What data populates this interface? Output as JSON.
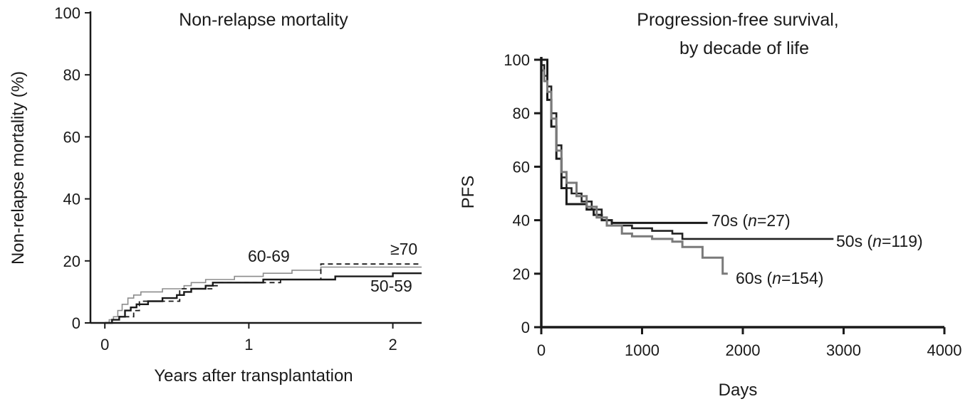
{
  "chart_data": [
    {
      "type": "line",
      "step": true,
      "title": "Non-relapse mortality",
      "xlabel": "Years after transplantation",
      "ylabel": "Non-relapse mortality (%)",
      "xlim": [
        -0.1,
        2.2
      ],
      "ylim": [
        0,
        100
      ],
      "xticks": [
        0,
        1,
        2
      ],
      "yticks": [
        0,
        20,
        40,
        60,
        80,
        100
      ],
      "grid": false,
      "series": [
        {
          "name": "60-69",
          "color": "#8c8c8c",
          "dash": "none",
          "points": [
            [
              0,
              0
            ],
            [
              0.03,
              1
            ],
            [
              0.06,
              2
            ],
            [
              0.09,
              4
            ],
            [
              0.12,
              6
            ],
            [
              0.16,
              8
            ],
            [
              0.2,
              9
            ],
            [
              0.25,
              10
            ],
            [
              0.4,
              11
            ],
            [
              0.55,
              12
            ],
            [
              0.6,
              13
            ],
            [
              0.7,
              14
            ],
            [
              0.9,
              15
            ],
            [
              1.1,
              16
            ],
            [
              1.3,
              17
            ],
            [
              1.5,
              18
            ],
            [
              1.6,
              18
            ],
            [
              2.2,
              18
            ]
          ]
        },
        {
          "name": "50-59",
          "color": "#1a1a1a",
          "dash": "none",
          "points": [
            [
              0,
              0
            ],
            [
              0.05,
              1
            ],
            [
              0.1,
              2
            ],
            [
              0.14,
              4
            ],
            [
              0.18,
              5
            ],
            [
              0.22,
              6
            ],
            [
              0.3,
              7
            ],
            [
              0.4,
              8
            ],
            [
              0.5,
              9
            ],
            [
              0.55,
              10
            ],
            [
              0.6,
              11
            ],
            [
              0.7,
              12
            ],
            [
              0.75,
              13
            ],
            [
              1.0,
              13
            ],
            [
              1.1,
              14
            ],
            [
              1.5,
              14
            ],
            [
              1.6,
              15
            ],
            [
              2.0,
              16
            ],
            [
              2.2,
              16
            ]
          ]
        },
        {
          "name": "≥70",
          "color": "#1a1a1a",
          "dash": "7,5",
          "points": [
            [
              0,
              0
            ],
            [
              0.1,
              2
            ],
            [
              0.2,
              4
            ],
            [
              0.24,
              7
            ],
            [
              0.5,
              7
            ],
            [
              0.52,
              11
            ],
            [
              0.75,
              12
            ],
            [
              0.78,
              13
            ],
            [
              1.2,
              13
            ],
            [
              1.22,
              14
            ],
            [
              1.5,
              14
            ],
            [
              1.5,
              19
            ],
            [
              2.2,
              19
            ]
          ]
        }
      ]
    },
    {
      "type": "line",
      "step": true,
      "title": "Progression-free survival,",
      "subtitle": "by decade of life",
      "xlabel": "Days",
      "ylabel": "PFS",
      "xlim": [
        0,
        4000
      ],
      "ylim": [
        0,
        100
      ],
      "xticks": [
        0,
        1000,
        2000,
        3000,
        4000
      ],
      "yticks": [
        0,
        20,
        40,
        60,
        80,
        100
      ],
      "grid": false,
      "series": [
        {
          "name": "70s (n=27)",
          "color": "#1a1a1a",
          "points": [
            [
              0,
              100
            ],
            [
              60,
              100
            ],
            [
              60,
              85
            ],
            [
              100,
              75
            ],
            [
              150,
              63
            ],
            [
              200,
              52
            ],
            [
              250,
              46
            ],
            [
              400,
              46
            ],
            [
              450,
              44
            ],
            [
              520,
              42
            ],
            [
              600,
              40
            ],
            [
              700,
              39
            ],
            [
              1000,
              39
            ],
            [
              1200,
              39
            ],
            [
              1300,
              39
            ],
            [
              1650,
              39
            ]
          ]
        },
        {
          "name": "50s (n=119)",
          "color": "#222222",
          "points": [
            [
              0,
              98
            ],
            [
              30,
              94
            ],
            [
              60,
              90
            ],
            [
              100,
              80
            ],
            [
              150,
              68
            ],
            [
              200,
              56
            ],
            [
              250,
              52
            ],
            [
              300,
              50
            ],
            [
              400,
              47
            ],
            [
              500,
              44
            ],
            [
              600,
              40
            ],
            [
              700,
              38
            ],
            [
              900,
              37
            ],
            [
              1100,
              36
            ],
            [
              1300,
              35
            ],
            [
              1400,
              33
            ],
            [
              2000,
              33
            ],
            [
              2900,
              33
            ]
          ]
        },
        {
          "name": "60s (n=154)",
          "color": "#7a7a7a",
          "points": [
            [
              0,
              96
            ],
            [
              30,
              92
            ],
            [
              60,
              88
            ],
            [
              100,
              78
            ],
            [
              150,
              66
            ],
            [
              200,
              58
            ],
            [
              250,
              54
            ],
            [
              350,
              49
            ],
            [
              450,
              45
            ],
            [
              550,
              41
            ],
            [
              650,
              38
            ],
            [
              800,
              35
            ],
            [
              900,
              34
            ],
            [
              1100,
              33
            ],
            [
              1300,
              32
            ],
            [
              1400,
              30
            ],
            [
              1600,
              26
            ],
            [
              1800,
              20
            ],
            [
              1850,
              20
            ]
          ]
        }
      ]
    }
  ],
  "left_panel": {
    "title": "Non-relapse mortality",
    "ylabel": "Non-relapse mortality (%)",
    "xlabel": "Years after transplantation",
    "labels": {
      "s6069": "60-69",
      "s5059": "50-59",
      "s70": "≥70"
    }
  },
  "right_panel": {
    "title_line1": "Progression-free survival,",
    "title_line2": "by decade of life",
    "ylabel": "PFS",
    "xlabel": "Days",
    "labels": {
      "s70": {
        "prefix": "70s (",
        "n": "n",
        "rest": "=27)"
      },
      "s50": {
        "prefix": "50s (",
        "n": "n",
        "rest": "=119)"
      },
      "s60": {
        "prefix": "60s (",
        "n": "n",
        "rest": "=154)"
      }
    }
  }
}
